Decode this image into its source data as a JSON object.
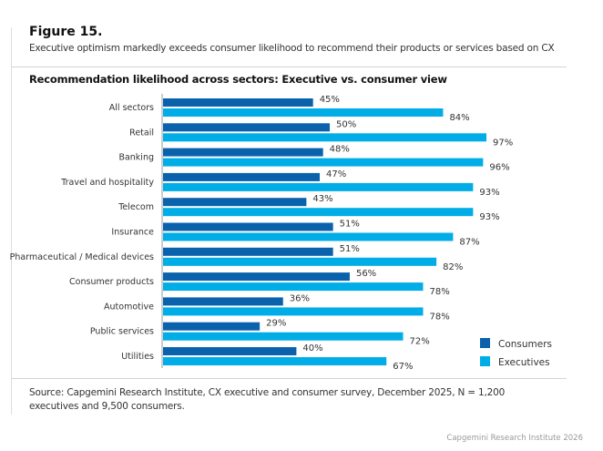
{
  "figure_label": "Figure 15.",
  "subtitle": "Executive optimism markedly exceeds consumer likelihood to recommend their products or services based on CX",
  "source": "Source: Capgemini Research Institute, CX executive and consumer survey, December 2025, N = 1,200 executives and 9,500 consumers.",
  "credit": "Capgemini Research Institute 2026",
  "colors": {
    "consumers": "#0a62ad",
    "executives": "#00ade6"
  },
  "chart_data": {
    "type": "bar",
    "orientation": "horizontal",
    "title": "Recommendation likelihood across sectors: Executive vs. consumer view",
    "categories": [
      "All sectors",
      "Retail",
      "Banking",
      "Travel and hospitality",
      "Telecom",
      "Insurance",
      "Pharmaceutical / Medical devices",
      "Consumer products",
      "Automotive",
      "Public services",
      "Utilities"
    ],
    "series": [
      {
        "name": "Consumers",
        "values": [
          45,
          50,
          48,
          47,
          43,
          51,
          51,
          56,
          36,
          29,
          40
        ]
      },
      {
        "name": "Executives",
        "values": [
          84,
          97,
          96,
          93,
          93,
          87,
          82,
          78,
          78,
          72,
          67
        ]
      }
    ],
    "unit": "%",
    "xlim": [
      0,
      100
    ],
    "legend": "bottom-right",
    "grid": false
  }
}
